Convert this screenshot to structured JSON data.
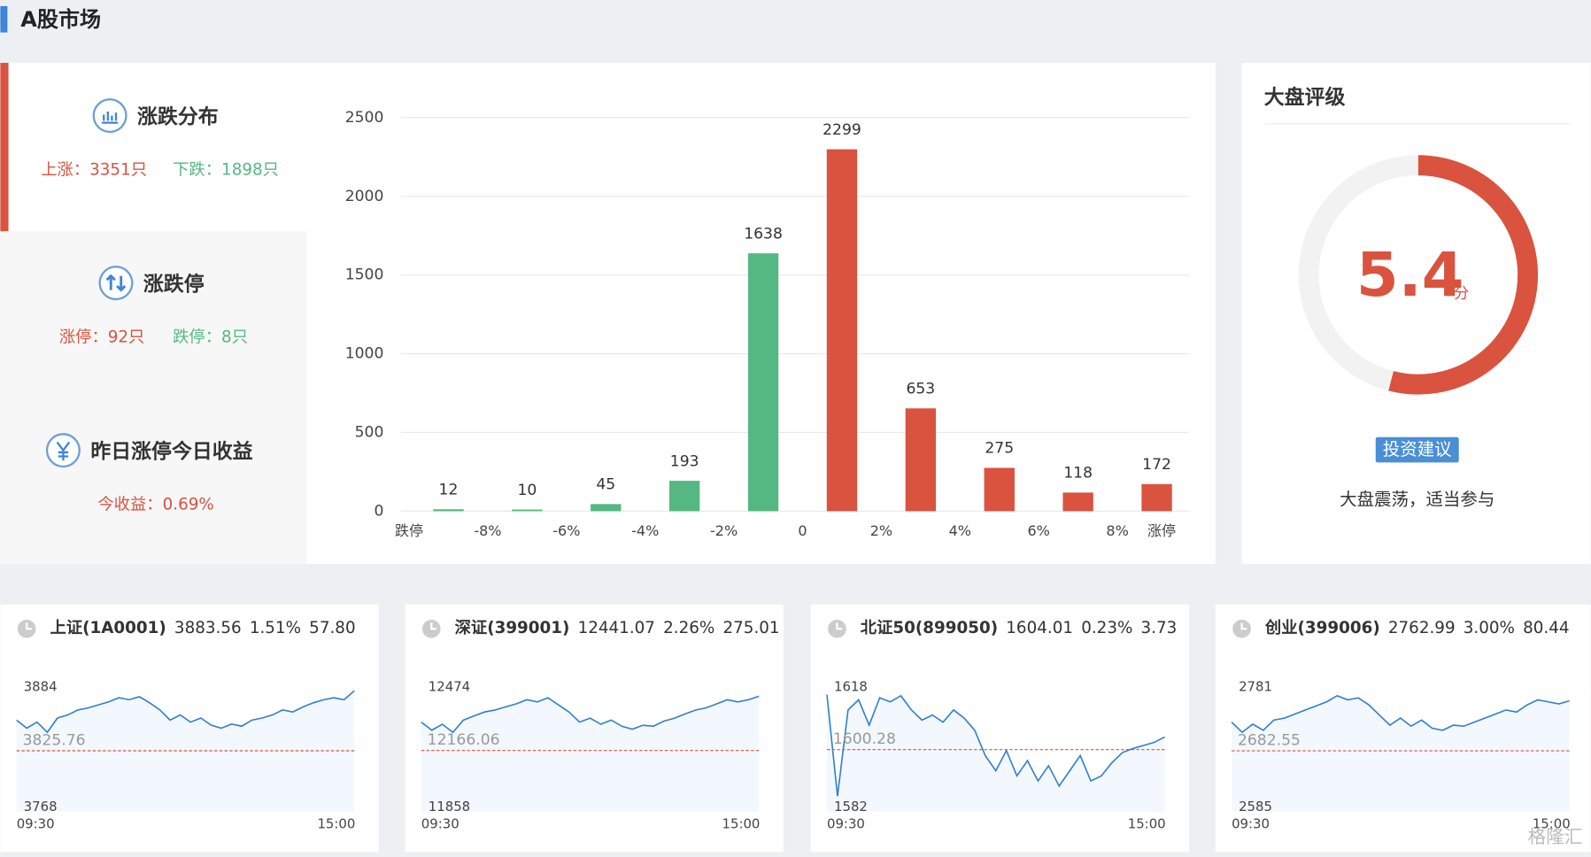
{
  "header": {
    "title": "A股市场"
  },
  "stats": {
    "distribution": {
      "title": "涨跌分布",
      "up": "上涨：3351只",
      "down": "下跌：1898只"
    },
    "limit": {
      "title": "涨跌停",
      "up": "涨停：92只",
      "down": "跌停：8只"
    },
    "yesterday": {
      "title": "昨日涨停今日收益",
      "value": "今收益：0.69%"
    }
  },
  "chart_data": {
    "type": "histogram",
    "bins": [
      -10,
      -8,
      -6,
      -4,
      -2,
      0,
      2,
      4,
      6,
      8,
      10
    ],
    "values": [
      12,
      10,
      45,
      193,
      1638,
      2299,
      653,
      275,
      118,
      172
    ],
    "xlim": [
      -10,
      10
    ],
    "xticks": [
      {
        "value": -10,
        "label": "跌停"
      },
      {
        "value": -8,
        "label": "-8%"
      },
      {
        "value": -6,
        "label": "-6%"
      },
      {
        "value": -4,
        "label": "-4%"
      },
      {
        "value": -2,
        "label": "-2%"
      },
      0,
      {
        "value": 2,
        "label": "2%"
      },
      {
        "value": 4,
        "label": "4%"
      },
      {
        "value": 6,
        "label": "6%"
      },
      {
        "value": 8,
        "label": "8%"
      },
      {
        "value": 10,
        "label": "涨停"
      }
    ],
    "ylim": [
      0,
      2500
    ],
    "yticks": [
      0,
      500,
      1000,
      1500,
      2000,
      2500
    ],
    "grid": true,
    "up_color": "#d9533f",
    "down_color": "#55b882"
  },
  "rating": {
    "title": "大盘评级",
    "score": 5.4,
    "unit": "分",
    "range": [
      0,
      10
    ],
    "color": "#d9533f",
    "button": "投资建议",
    "advice": "大盘震荡，适当参与"
  },
  "indices": [
    {
      "name": "上证(1A0001)",
      "price": "3883.56",
      "change_pct": "1.51%",
      "change": "57.80",
      "ylim": [
        3768,
        3884
      ],
      "yticks": [
        3768,
        3884
      ],
      "reference": 3825.76,
      "time_labels": [
        "09:30",
        "15:00"
      ],
      "values": [
        3855.0,
        3847.3,
        3853.1,
        3843.4,
        3857.0,
        3859.9,
        3864.7,
        3866.6,
        3869.5,
        3872.4,
        3876.3,
        3874.4,
        3877.3,
        3871.5,
        3864.7,
        3855.0,
        3859.9,
        3853.1,
        3857.0,
        3850.2,
        3847.3,
        3851.2,
        3849.2,
        3855.0,
        3857.0,
        3859.9,
        3864.7,
        3862.8,
        3867.6,
        3871.5,
        3874.4,
        3876.3,
        3874.4,
        3883.0
      ]
    },
    {
      "name": "深证(399001)",
      "price": "12441.07",
      "change_pct": "2.26%",
      "change": "275.01",
      "ylim": [
        11858,
        12474
      ],
      "yticks": [
        11858,
        12474
      ],
      "reference": 12166.06,
      "time_labels": [
        "09:30",
        "15:00"
      ],
      "values": [
        12310,
        12269,
        12299,
        12258,
        12320,
        12341,
        12361,
        12371,
        12387,
        12402,
        12423,
        12412,
        12433,
        12397,
        12361,
        12310,
        12330,
        12299,
        12320,
        12289,
        12274,
        12294,
        12289,
        12315,
        12330,
        12351,
        12371,
        12382,
        12402,
        12423,
        12412,
        12423,
        12441
      ]
    },
    {
      "name": "北证50(899050)",
      "price": "1604.01",
      "change_pct": "0.23%",
      "change": "3.73",
      "ylim": [
        1582,
        1618
      ],
      "yticks": [
        1582,
        1618
      ],
      "reference": 1600.28,
      "time_labels": [
        "09:30",
        "15:00"
      ],
      "values": [
        1616.5,
        1586.5,
        1612,
        1615,
        1607.5,
        1615.6,
        1614.4,
        1616.2,
        1612,
        1609,
        1610.5,
        1608.4,
        1612,
        1609.6,
        1606,
        1598.5,
        1594,
        1600,
        1592.5,
        1597,
        1591,
        1595.5,
        1589.5,
        1594,
        1598.5,
        1591,
        1592.5,
        1596.4,
        1599.4,
        1600.6,
        1601.5,
        1602.4,
        1604
      ]
    },
    {
      "name": "创业(399006)",
      "price": "2762.99",
      "change_pct": "3.00%",
      "change": "80.44",
      "ylim": [
        2585,
        2781
      ],
      "yticks": [
        2585,
        2781
      ],
      "reference": 2682.55,
      "time_labels": [
        "09:30",
        "15:00"
      ],
      "values": [
        2728.7,
        2712.4,
        2725.4,
        2715.6,
        2732,
        2735.2,
        2741.8,
        2748.3,
        2754.8,
        2761.4,
        2771.2,
        2764.6,
        2767.9,
        2756.5,
        2740.1,
        2723.8,
        2735.2,
        2722.2,
        2732,
        2718.9,
        2715.6,
        2723.8,
        2722.2,
        2728.7,
        2735.2,
        2741.8,
        2748.3,
        2745,
        2756.5,
        2764.6,
        2761.4,
        2758.1,
        2763
      ]
    }
  ],
  "watermark": "格隆汇"
}
